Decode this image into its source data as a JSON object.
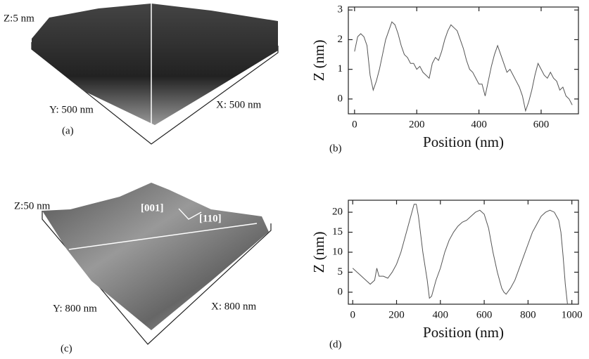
{
  "chart_data": [
    {
      "type": "line",
      "panel": "(b)",
      "xlabel": "Position (nm)",
      "ylabel": "Z (nm)",
      "color": "#555555",
      "x": [
        0,
        10,
        20,
        30,
        40,
        50,
        60,
        70,
        80,
        90,
        100,
        110,
        120,
        130,
        140,
        150,
        160,
        170,
        180,
        190,
        200,
        210,
        220,
        230,
        240,
        250,
        260,
        270,
        280,
        290,
        300,
        310,
        320,
        330,
        340,
        350,
        360,
        370,
        380,
        390,
        400,
        410,
        420,
        430,
        440,
        450,
        460,
        470,
        480,
        490,
        500,
        510,
        520,
        530,
        540,
        550,
        560,
        570,
        580,
        590,
        600,
        610,
        620,
        630,
        640,
        650,
        660,
        670,
        680,
        690,
        700
      ],
      "values": [
        1.6,
        2.1,
        2.2,
        2.1,
        1.8,
        0.8,
        0.3,
        0.6,
        1.0,
        1.5,
        2.0,
        2.3,
        2.6,
        2.5,
        2.2,
        1.8,
        1.5,
        1.4,
        1.2,
        1.2,
        1.0,
        1.1,
        0.9,
        0.8,
        0.7,
        1.2,
        1.4,
        1.3,
        1.6,
        2.0,
        2.3,
        2.5,
        2.4,
        2.3,
        2.0,
        1.7,
        1.3,
        1.0,
        0.9,
        0.7,
        0.5,
        0.5,
        0.1,
        0.6,
        1.1,
        1.5,
        1.8,
        1.5,
        1.2,
        0.9,
        1.0,
        0.8,
        0.6,
        0.4,
        0.1,
        -0.4,
        -0.1,
        0.3,
        0.8,
        1.2,
        1.0,
        0.8,
        0.7,
        0.9,
        0.7,
        0.6,
        0.3,
        0.4,
        0.1,
        0.0,
        -0.2
      ],
      "xlim": [
        -20,
        720
      ],
      "ylim": [
        -0.5,
        3.1
      ],
      "xticks": [
        0,
        200,
        400,
        600
      ],
      "yticks": [
        0,
        1,
        2,
        3
      ]
    },
    {
      "type": "line",
      "panel": "(d)",
      "xlabel": "Position (nm)",
      "ylabel": "Z (nm)",
      "color": "#555555",
      "x": [
        0,
        20,
        40,
        60,
        80,
        100,
        110,
        120,
        140,
        160,
        180,
        200,
        220,
        240,
        260,
        280,
        290,
        300,
        320,
        340,
        350,
        360,
        380,
        400,
        420,
        440,
        460,
        480,
        500,
        520,
        540,
        560,
        580,
        600,
        620,
        640,
        660,
        680,
        690,
        700,
        720,
        740,
        760,
        780,
        800,
        820,
        840,
        860,
        880,
        900,
        920,
        940,
        950,
        960,
        970,
        980
      ],
      "values": [
        6,
        5,
        4,
        3,
        2,
        3,
        6,
        4,
        4,
        3.5,
        5,
        7,
        10,
        14,
        18,
        22,
        22,
        19,
        10,
        3,
        -1.5,
        -1,
        3,
        6,
        10,
        13,
        15,
        16.5,
        17.5,
        18,
        19,
        20,
        20.5,
        19.5,
        16,
        10,
        5,
        1,
        0,
        -0.5,
        1,
        3,
        6,
        9,
        12,
        15,
        17,
        19,
        20,
        20.5,
        20,
        18,
        15,
        9,
        2,
        -3
      ],
      "xlim": [
        -20,
        1030
      ],
      "ylim": [
        -3,
        23
      ],
      "xticks": [
        0,
        200,
        400,
        600,
        800,
        1000
      ],
      "yticks": [
        0,
        5,
        10,
        15,
        20
      ]
    }
  ],
  "images": [
    {
      "z_label": "Z:5 nm",
      "y_label": "Y: 500 nm",
      "x_label": "X: 500 nm",
      "panel": "(a)"
    },
    {
      "z_label": "Z:50 nm",
      "y_label": "Y: 800 nm",
      "x_label": "X: 800 nm",
      "panel": "(c)",
      "dir1": "[001]",
      "dir2": "[110]"
    }
  ]
}
